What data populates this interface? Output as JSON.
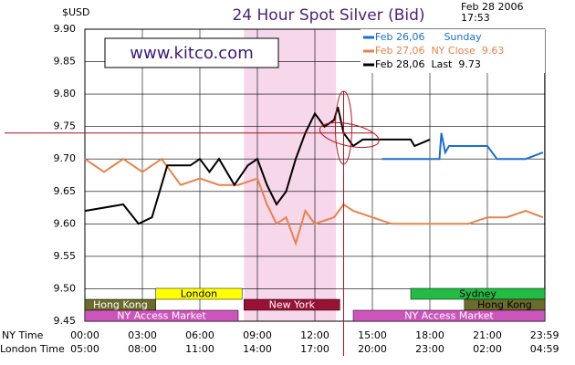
{
  "chart_data": {
    "type": "line",
    "title": "24 Hour Spot Silver (Bid)",
    "y_label": "$USD",
    "date": "Feb 28 2006",
    "time": "17:53",
    "watermark": "www.kitco.com",
    "x_label": "NY Time",
    "x2_label": "London Time",
    "xlim": [
      0,
      24
    ],
    "xticks": [
      {
        "value": 0,
        "label": "00:00"
      },
      {
        "value": 3,
        "label": "03:00"
      },
      {
        "value": 6,
        "label": "06:00"
      },
      {
        "value": 9,
        "label": "09:00"
      },
      {
        "value": 12,
        "label": "12:00"
      },
      {
        "value": 15,
        "label": "15:00"
      },
      {
        "value": 18,
        "label": "18:00"
      },
      {
        "value": 21,
        "label": "21:00"
      },
      {
        "value": 23.983,
        "label": "23:59"
      }
    ],
    "x2tick_labels": [
      "05:00",
      "08:00",
      "11:00",
      "14:00",
      "17:00",
      "20:00",
      "23:00",
      "02:00",
      "04:59"
    ],
    "ylim": [
      9.45,
      9.9
    ],
    "yticks": [
      9.45,
      {
        "value": 9.5,
        "label": "9.50"
      },
      9.55,
      {
        "value": 9.6,
        "label": "9.60"
      },
      9.65,
      {
        "value": 9.7,
        "label": "9.70"
      },
      9.75,
      {
        "value": 9.8,
        "label": "9.80"
      },
      9.85,
      {
        "value": 9.9,
        "label": "9.90"
      }
    ],
    "grid": true,
    "sessions": [
      "London",
      "Sydney",
      "Hong Kong",
      "New York",
      "Hong Kong",
      "NY Access Market",
      "NY Access Market"
    ],
    "series": [
      {
        "name": "Feb 26,06      Sunday",
        "color": "#1a6fd1",
        "x": [
          15.5,
          18.5,
          18.6,
          18.8,
          19,
          21,
          21.5,
          23,
          23.9
        ],
        "values": [
          9.7,
          9.7,
          9.74,
          9.71,
          9.72,
          9.72,
          9.7,
          9.7,
          9.71
        ]
      },
      {
        "name": "Feb 27,06  NY Close  9.63",
        "color": "#e8824a",
        "x": [
          0,
          1,
          2,
          3,
          4,
          5,
          6,
          7,
          8,
          9,
          9.5,
          10,
          10.5,
          11,
          11.5,
          12,
          13,
          13.5,
          14,
          15,
          16,
          17,
          18,
          19,
          20,
          21,
          22,
          23,
          23.9
        ],
        "values": [
          9.7,
          9.68,
          9.7,
          9.68,
          9.7,
          9.66,
          9.67,
          9.66,
          9.66,
          9.67,
          9.63,
          9.6,
          9.61,
          9.57,
          9.62,
          9.6,
          9.61,
          9.63,
          9.62,
          9.61,
          9.6,
          9.6,
          9.6,
          9.6,
          9.6,
          9.61,
          9.61,
          9.62,
          9.61
        ]
      },
      {
        "name": "Feb 28,06  Last  9.73",
        "color": "#000000",
        "x": [
          0,
          2,
          2.8,
          3.5,
          4,
          4.3,
          5.5,
          6,
          6.5,
          7,
          7.8,
          8.5,
          9,
          9.5,
          10,
          10.5,
          11,
          11.5,
          12,
          12.5,
          13,
          13.2,
          13.5,
          14,
          14.5,
          15,
          16,
          17,
          17.2,
          18
        ],
        "values": [
          9.62,
          9.63,
          9.6,
          9.61,
          9.66,
          9.69,
          9.69,
          9.7,
          9.68,
          9.7,
          9.66,
          9.69,
          9.7,
          9.66,
          9.63,
          9.65,
          9.7,
          9.74,
          9.77,
          9.75,
          9.76,
          9.78,
          9.74,
          9.72,
          9.73,
          9.73,
          9.73,
          9.73,
          9.72,
          9.73
        ]
      }
    ]
  }
}
